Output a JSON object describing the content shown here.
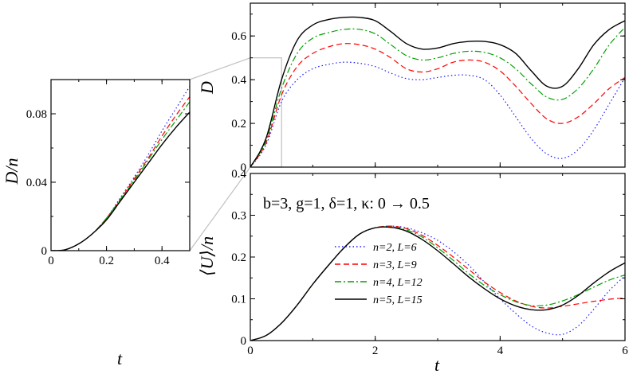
{
  "chart_data": [
    {
      "id": "inset",
      "type": "line",
      "xlabel": "t",
      "ylabel": "D/n",
      "xlim": [
        0,
        0.5
      ],
      "ylim": [
        0,
        0.1
      ],
      "xticks": [
        0,
        0.2,
        0.4
      ],
      "xtick_labels": [
        "0",
        "0.2",
        "0.4"
      ],
      "yticks": [
        0,
        0.04,
        0.08
      ],
      "ytick_labels": [
        "0",
        "0.04",
        "0.08"
      ],
      "series": [
        {
          "name": "n=2, L=6",
          "x": [
            0,
            0.05,
            0.1,
            0.15,
            0.2,
            0.25,
            0.3,
            0.35,
            0.4,
            0.45,
            0.5
          ],
          "y": [
            0,
            0.0005,
            0.004,
            0.01,
            0.019,
            0.031,
            0.043,
            0.056,
            0.07,
            0.083,
            0.096
          ]
        },
        {
          "name": "n=3, L=9",
          "x": [
            0,
            0.05,
            0.1,
            0.15,
            0.2,
            0.25,
            0.3,
            0.35,
            0.4,
            0.45,
            0.5
          ],
          "y": [
            0,
            0.0005,
            0.004,
            0.01,
            0.019,
            0.03,
            0.042,
            0.054,
            0.067,
            0.079,
            0.09
          ]
        },
        {
          "name": "n=4, L=12",
          "x": [
            0,
            0.05,
            0.1,
            0.15,
            0.2,
            0.25,
            0.3,
            0.35,
            0.4,
            0.45,
            0.5
          ],
          "y": [
            0,
            0.0005,
            0.004,
            0.01,
            0.019,
            0.03,
            0.041,
            0.053,
            0.065,
            0.076,
            0.087
          ]
        },
        {
          "name": "n=5, L=15",
          "x": [
            0,
            0.05,
            0.1,
            0.15,
            0.2,
            0.25,
            0.3,
            0.35,
            0.4,
            0.45,
            0.5
          ],
          "y": [
            0,
            0.0005,
            0.004,
            0.01,
            0.018,
            0.029,
            0.04,
            0.051,
            0.062,
            0.072,
            0.081
          ]
        }
      ]
    },
    {
      "id": "top",
      "type": "line",
      "xlabel": "",
      "ylabel": "D",
      "xlim": [
        0,
        6
      ],
      "ylim": [
        0,
        0.75
      ],
      "xticks": [
        0,
        2,
        4,
        6
      ],
      "xtick_labels": [],
      "yticks": [
        0,
        0.2,
        0.4,
        0.6
      ],
      "ytick_labels": [
        "0",
        "0.2",
        "0.4",
        "0.6"
      ],
      "series": [
        {
          "name": "n=2, L=6",
          "x": [
            0,
            0.25,
            0.5,
            0.75,
            1,
            1.25,
            1.5,
            1.75,
            2,
            2.25,
            2.5,
            2.75,
            3,
            3.25,
            3.5,
            3.75,
            4,
            4.25,
            4.5,
            4.75,
            5,
            5.25,
            5.5,
            5.75,
            6
          ],
          "y": [
            0,
            0.1,
            0.3,
            0.4,
            0.45,
            0.47,
            0.48,
            0.475,
            0.46,
            0.43,
            0.405,
            0.4,
            0.41,
            0.42,
            0.42,
            0.4,
            0.33,
            0.23,
            0.13,
            0.06,
            0.04,
            0.08,
            0.17,
            0.29,
            0.41
          ]
        },
        {
          "name": "n=3, L=9",
          "x": [
            0,
            0.25,
            0.5,
            0.75,
            1,
            1.25,
            1.5,
            1.75,
            2,
            2.25,
            2.5,
            2.75,
            3,
            3.25,
            3.5,
            3.75,
            4,
            4.25,
            4.5,
            4.75,
            5,
            5.25,
            5.5,
            5.75,
            6
          ],
          "y": [
            0,
            0.11,
            0.33,
            0.46,
            0.52,
            0.55,
            0.565,
            0.56,
            0.54,
            0.5,
            0.45,
            0.435,
            0.45,
            0.48,
            0.49,
            0.48,
            0.44,
            0.37,
            0.29,
            0.22,
            0.2,
            0.23,
            0.29,
            0.36,
            0.41
          ]
        },
        {
          "name": "n=4, L=12",
          "x": [
            0,
            0.25,
            0.5,
            0.75,
            1,
            1.25,
            1.5,
            1.75,
            2,
            2.25,
            2.5,
            2.75,
            3,
            3.25,
            3.5,
            3.75,
            4,
            4.25,
            4.5,
            4.75,
            5,
            5.25,
            5.5,
            5.75,
            6
          ],
          "y": [
            0,
            0.12,
            0.36,
            0.52,
            0.59,
            0.615,
            0.63,
            0.63,
            0.61,
            0.56,
            0.51,
            0.49,
            0.5,
            0.52,
            0.53,
            0.525,
            0.5,
            0.45,
            0.38,
            0.32,
            0.31,
            0.36,
            0.45,
            0.56,
            0.64
          ]
        },
        {
          "name": "n=5, L=15",
          "x": [
            0,
            0.25,
            0.5,
            0.75,
            1,
            1.25,
            1.5,
            1.75,
            2,
            2.25,
            2.5,
            2.75,
            3,
            3.25,
            3.5,
            3.75,
            4,
            4.25,
            4.5,
            4.75,
            5,
            5.25,
            5.5,
            5.75,
            6
          ],
          "y": [
            0,
            0.13,
            0.4,
            0.58,
            0.65,
            0.675,
            0.685,
            0.685,
            0.67,
            0.62,
            0.565,
            0.54,
            0.545,
            0.565,
            0.575,
            0.575,
            0.56,
            0.52,
            0.44,
            0.37,
            0.37,
            0.45,
            0.56,
            0.63,
            0.67
          ]
        }
      ]
    },
    {
      "id": "bottom",
      "type": "line",
      "xlabel": "t",
      "ylabel": "⟨U⟩/n",
      "xlim": [
        0,
        6
      ],
      "ylim": [
        0,
        0.4
      ],
      "xticks": [
        0,
        2,
        4,
        6
      ],
      "xtick_labels": [
        "0",
        "2",
        "4",
        "6"
      ],
      "yticks": [
        0,
        0.1,
        0.2,
        0.3,
        0.4
      ],
      "ytick_labels": [
        "0",
        "0.1",
        "0.2",
        "0.3",
        "0.4"
      ],
      "annotation": "b=3, g=1, δ=1, κ: 0 → 0.5",
      "series": [
        {
          "name": "n=2, L=6",
          "x": [
            0,
            0.25,
            0.5,
            0.75,
            1,
            1.25,
            1.5,
            1.75,
            2,
            2.25,
            2.5,
            2.75,
            3,
            3.25,
            3.5,
            3.75,
            4,
            4.25,
            4.5,
            4.75,
            5,
            5.25,
            5.5,
            5.75,
            6
          ],
          "y": [
            0,
            0.012,
            0.042,
            0.085,
            0.135,
            0.18,
            0.222,
            0.255,
            0.27,
            0.274,
            0.27,
            0.258,
            0.24,
            0.213,
            0.18,
            0.14,
            0.1,
            0.065,
            0.035,
            0.018,
            0.015,
            0.035,
            0.075,
            0.12,
            0.155
          ]
        },
        {
          "name": "n=3, L=9",
          "x": [
            0,
            0.25,
            0.5,
            0.75,
            1,
            1.25,
            1.5,
            1.75,
            2,
            2.25,
            2.5,
            2.75,
            3,
            3.25,
            3.5,
            3.75,
            4,
            4.25,
            4.5,
            4.75,
            5,
            5.25,
            5.5,
            5.75,
            6
          ],
          "y": [
            0,
            0.012,
            0.042,
            0.085,
            0.135,
            0.18,
            0.222,
            0.255,
            0.27,
            0.274,
            0.268,
            0.252,
            0.228,
            0.2,
            0.17,
            0.14,
            0.115,
            0.095,
            0.082,
            0.078,
            0.082,
            0.088,
            0.094,
            0.099,
            0.102
          ]
        },
        {
          "name": "n=4, L=12",
          "x": [
            0,
            0.25,
            0.5,
            0.75,
            1,
            1.25,
            1.5,
            1.75,
            2,
            2.25,
            2.5,
            2.75,
            3,
            3.25,
            3.5,
            3.75,
            4,
            4.25,
            4.5,
            4.75,
            5,
            5.25,
            5.5,
            5.75,
            6
          ],
          "y": [
            0,
            0.012,
            0.042,
            0.085,
            0.135,
            0.18,
            0.222,
            0.255,
            0.27,
            0.272,
            0.265,
            0.248,
            0.222,
            0.192,
            0.16,
            0.132,
            0.11,
            0.093,
            0.084,
            0.085,
            0.095,
            0.11,
            0.128,
            0.145,
            0.157
          ]
        },
        {
          "name": "n=5, L=15",
          "x": [
            0,
            0.25,
            0.5,
            0.75,
            1,
            1.25,
            1.5,
            1.75,
            2,
            2.25,
            2.5,
            2.75,
            3,
            3.25,
            3.5,
            3.75,
            4,
            4.25,
            4.5,
            4.75,
            5,
            5.25,
            5.5,
            5.75,
            6
          ],
          "y": [
            0,
            0.012,
            0.042,
            0.085,
            0.135,
            0.18,
            0.222,
            0.255,
            0.27,
            0.271,
            0.262,
            0.242,
            0.215,
            0.184,
            0.152,
            0.124,
            0.1,
            0.083,
            0.074,
            0.074,
            0.085,
            0.108,
            0.138,
            0.165,
            0.186
          ]
        }
      ]
    }
  ],
  "legend": [
    {
      "label": "n=2, L=6",
      "color": "#1a1aff",
      "dash": "dot"
    },
    {
      "label": "n=3, L=9",
      "color": "#ff0000",
      "dash": "dash"
    },
    {
      "label": "n=4, L=12",
      "color": "#00a000",
      "dash": "dashdot"
    },
    {
      "label": "n=5, L=15",
      "color": "#000000",
      "dash": "solid"
    }
  ],
  "zoom_box_color": "#c0c0c0"
}
